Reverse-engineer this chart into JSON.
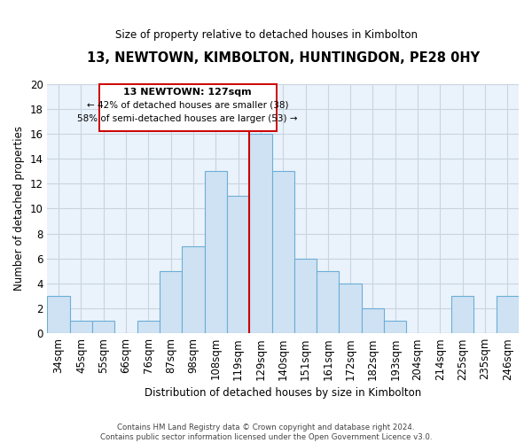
{
  "title": "13, NEWTOWN, KIMBOLTON, HUNTINGDON, PE28 0HY",
  "subtitle": "Size of property relative to detached houses in Kimbolton",
  "xlabel": "Distribution of detached houses by size in Kimbolton",
  "ylabel": "Number of detached properties",
  "footer_line1": "Contains HM Land Registry data © Crown copyright and database right 2024.",
  "footer_line2": "Contains public sector information licensed under the Open Government Licence v3.0.",
  "bins": [
    "34sqm",
    "45sqm",
    "55sqm",
    "66sqm",
    "76sqm",
    "87sqm",
    "98sqm",
    "108sqm",
    "119sqm",
    "129sqm",
    "140sqm",
    "151sqm",
    "161sqm",
    "172sqm",
    "182sqm",
    "193sqm",
    "204sqm",
    "214sqm",
    "225sqm",
    "235sqm",
    "246sqm"
  ],
  "values": [
    3,
    1,
    1,
    0,
    1,
    5,
    7,
    13,
    11,
    16,
    13,
    6,
    5,
    4,
    2,
    1,
    0,
    0,
    3,
    0,
    3
  ],
  "bar_color": "#cfe2f3",
  "bar_edge_color": "#6baed6",
  "grid_color": "#c8d4e0",
  "plot_bg_color": "#eaf2fb",
  "marker_line_index": 9,
  "marker_label": "13 NEWTOWN: 127sqm",
  "annotation_line1": "← 42% of detached houses are smaller (38)",
  "annotation_line2": "58% of semi-detached houses are larger (53) →",
  "marker_color": "#cc0000",
  "box_edge_color": "#cc0000",
  "ylim": [
    0,
    20
  ],
  "yticks": [
    0,
    2,
    4,
    6,
    8,
    10,
    12,
    14,
    16,
    18,
    20
  ]
}
